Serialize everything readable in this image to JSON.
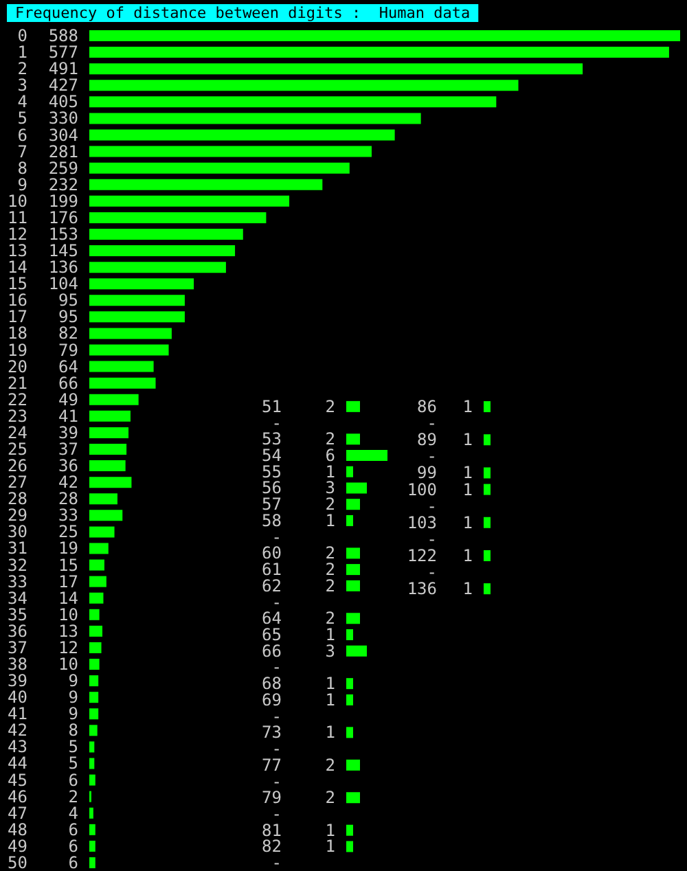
{
  "chart_data": [
    {
      "type": "bar",
      "orientation": "horizontal",
      "title": "Frequency of distance between digits :  Human data",
      "data_labels": true,
      "color": "#00ff00",
      "categories": [
        "0",
        "1",
        "2",
        "3",
        "4",
        "5",
        "6",
        "7",
        "8",
        "9",
        "10",
        "11",
        "12",
        "13",
        "14",
        "15",
        "16",
        "17",
        "18",
        "19",
        "20",
        "21",
        "22",
        "23",
        "24",
        "25",
        "26",
        "27",
        "28",
        "29",
        "30",
        "31",
        "32",
        "33",
        "34",
        "35",
        "36",
        "37",
        "38",
        "39",
        "40",
        "41",
        "42",
        "43",
        "44",
        "45",
        "46",
        "47",
        "48",
        "49",
        "50"
      ],
      "values": [
        588,
        577,
        491,
        427,
        405,
        330,
        304,
        281,
        259,
        232,
        199,
        176,
        153,
        145,
        136,
        104,
        95,
        95,
        82,
        79,
        64,
        66,
        49,
        41,
        39,
        37,
        36,
        42,
        28,
        33,
        25,
        19,
        15,
        17,
        14,
        10,
        13,
        12,
        10,
        9,
        9,
        9,
        8,
        5,
        5,
        6,
        2,
        4,
        6,
        6,
        6
      ]
    },
    {
      "type": "bar",
      "orientation": "horizontal",
      "data_labels": true,
      "color": "#00ff00",
      "categories": [
        "51",
        "-",
        "53",
        "54",
        "55",
        "56",
        "57",
        "58",
        "-",
        "60",
        "61",
        "62",
        "-",
        "64",
        "65",
        "66",
        "-",
        "68",
        "69",
        "-",
        "73",
        "-",
        "77",
        "-",
        "79",
        "-",
        "81",
        "82",
        "-"
      ],
      "values": [
        2,
        null,
        2,
        6,
        1,
        3,
        2,
        1,
        null,
        2,
        2,
        2,
        null,
        2,
        1,
        3,
        null,
        1,
        1,
        null,
        1,
        null,
        2,
        null,
        2,
        null,
        1,
        1,
        null
      ]
    },
    {
      "type": "bar",
      "orientation": "horizontal",
      "data_labels": true,
      "color": "#00ff00",
      "categories": [
        "86",
        "-",
        "89",
        "-",
        "99",
        "100",
        "-",
        "103",
        "-",
        "122",
        "-",
        "136"
      ],
      "values": [
        1,
        null,
        1,
        null,
        1,
        1,
        null,
        1,
        null,
        1,
        null,
        1
      ]
    }
  ]
}
